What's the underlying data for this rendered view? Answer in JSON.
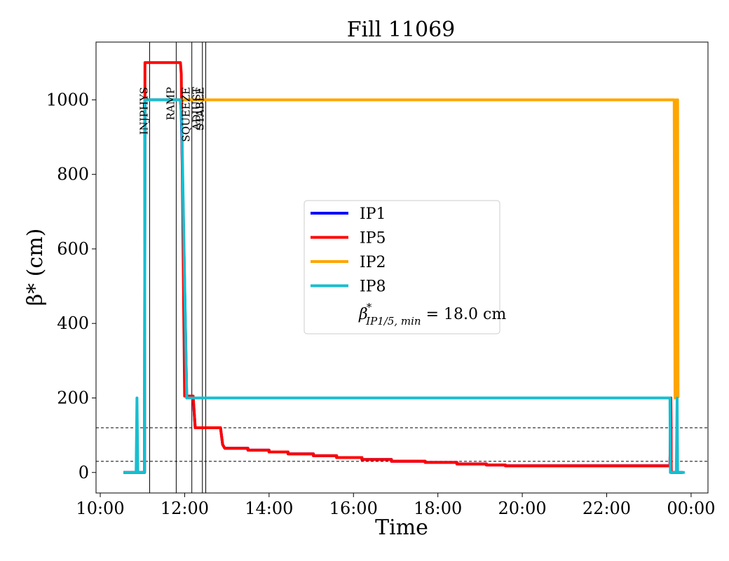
{
  "chart_data": {
    "type": "line",
    "title": "Fill 11069",
    "xlabel": "Time",
    "ylabel": "β* (cm)",
    "xlim": [
      -0.1,
      14.4
    ],
    "ylim": [
      -55,
      1155
    ],
    "x_unit": "hours since 10:00",
    "xticks": [
      {
        "x": 0,
        "label": "10:00"
      },
      {
        "x": 2,
        "label": "12:00"
      },
      {
        "x": 4,
        "label": "14:00"
      },
      {
        "x": 6,
        "label": "16:00"
      },
      {
        "x": 8,
        "label": "18:00"
      },
      {
        "x": 10,
        "label": "20:00"
      },
      {
        "x": 12,
        "label": "22:00"
      },
      {
        "x": 14,
        "label": "00:00"
      }
    ],
    "yticks": [
      {
        "y": 0,
        "label": "0"
      },
      {
        "y": 200,
        "label": "200"
      },
      {
        "y": 400,
        "label": "400"
      },
      {
        "y": 600,
        "label": "600"
      },
      {
        "y": 800,
        "label": "800"
      },
      {
        "y": 1000,
        "label": "1000"
      }
    ],
    "phases": [
      {
        "name": "INJPHYS",
        "x": 1.17
      },
      {
        "name": "RAMP",
        "x": 1.8
      },
      {
        "name": "SQUEEZE",
        "x": 2.17
      },
      {
        "name": "ADJUST",
        "x": 2.42
      },
      {
        "name": "STABLE",
        "x": 2.5
      }
    ],
    "hlines": [
      120,
      30
    ],
    "series": [
      {
        "name": "IP1",
        "color": "#0000ff",
        "points": [
          [
            0.55,
            0
          ],
          [
            1.05,
            0
          ],
          [
            1.06,
            1000
          ],
          [
            1.9,
            1000
          ],
          [
            1.92,
            970
          ],
          [
            2.05,
            200
          ],
          [
            2.2,
            200
          ],
          [
            2.25,
            120
          ],
          [
            2.85,
            120
          ],
          [
            2.9,
            75
          ],
          [
            2.95,
            65
          ],
          [
            3.5,
            65
          ],
          [
            3.5,
            60
          ],
          [
            4.0,
            60
          ],
          [
            4.0,
            55
          ],
          [
            4.45,
            55
          ],
          [
            4.45,
            50
          ],
          [
            5.05,
            50
          ],
          [
            5.05,
            45
          ],
          [
            5.6,
            45
          ],
          [
            5.6,
            40
          ],
          [
            6.2,
            40
          ],
          [
            6.2,
            35
          ],
          [
            6.9,
            35
          ],
          [
            6.9,
            30
          ],
          [
            7.7,
            30
          ],
          [
            7.7,
            27
          ],
          [
            8.45,
            27
          ],
          [
            8.45,
            23
          ],
          [
            9.15,
            23
          ],
          [
            9.15,
            20
          ],
          [
            9.6,
            20
          ],
          [
            9.6,
            18
          ],
          [
            13.5,
            18
          ],
          [
            13.52,
            200
          ],
          [
            13.53,
            0
          ],
          [
            13.8,
            0
          ]
        ]
      },
      {
        "name": "IP5",
        "color": "#ff0000",
        "points": [
          [
            0.55,
            0
          ],
          [
            1.05,
            0
          ],
          [
            1.06,
            1100
          ],
          [
            1.9,
            1100
          ],
          [
            1.92,
            1070
          ],
          [
            2.0,
            205
          ],
          [
            2.2,
            205
          ],
          [
            2.25,
            120
          ],
          [
            2.85,
            120
          ],
          [
            2.9,
            75
          ],
          [
            2.95,
            65
          ],
          [
            3.5,
            65
          ],
          [
            3.5,
            60
          ],
          [
            4.0,
            60
          ],
          [
            4.0,
            55
          ],
          [
            4.45,
            55
          ],
          [
            4.45,
            50
          ],
          [
            5.05,
            50
          ],
          [
            5.05,
            45
          ],
          [
            5.6,
            45
          ],
          [
            5.6,
            40
          ],
          [
            6.2,
            40
          ],
          [
            6.2,
            35
          ],
          [
            6.9,
            35
          ],
          [
            6.9,
            30
          ],
          [
            7.7,
            30
          ],
          [
            7.7,
            27
          ],
          [
            8.45,
            27
          ],
          [
            8.45,
            23
          ],
          [
            9.15,
            23
          ],
          [
            9.15,
            20
          ],
          [
            9.6,
            20
          ],
          [
            9.6,
            18
          ],
          [
            13.5,
            18
          ],
          [
            13.52,
            200
          ],
          [
            13.53,
            0
          ],
          [
            13.8,
            0
          ]
        ]
      },
      {
        "name": "IP2",
        "color": "#ffa500",
        "points": [
          [
            1.06,
            1000
          ],
          [
            13.6,
            1000
          ],
          [
            13.62,
            200
          ],
          [
            13.65,
            1000
          ],
          [
            13.66,
            200
          ],
          [
            13.68,
            1000
          ],
          [
            13.69,
            200
          ]
        ]
      },
      {
        "name": "IP8",
        "color": "#17becf",
        "points": [
          [
            0.55,
            0
          ],
          [
            0.85,
            0
          ],
          [
            0.87,
            200
          ],
          [
            0.89,
            0
          ],
          [
            1.05,
            0
          ],
          [
            1.06,
            1000
          ],
          [
            1.9,
            1000
          ],
          [
            1.93,
            950
          ],
          [
            2.05,
            200
          ],
          [
            13.5,
            200
          ],
          [
            13.51,
            0
          ],
          [
            13.65,
            0
          ],
          [
            13.67,
            200
          ],
          [
            13.68,
            0
          ],
          [
            13.85,
            0
          ]
        ]
      }
    ],
    "legend": {
      "position": "center",
      "entries": [
        "IP1",
        "IP5",
        "IP2",
        "IP8"
      ],
      "note_symbol": "β",
      "note_sup": "*",
      "note_sub": "IP1/5, min",
      "note_value": " = 18.0 cm"
    }
  }
}
